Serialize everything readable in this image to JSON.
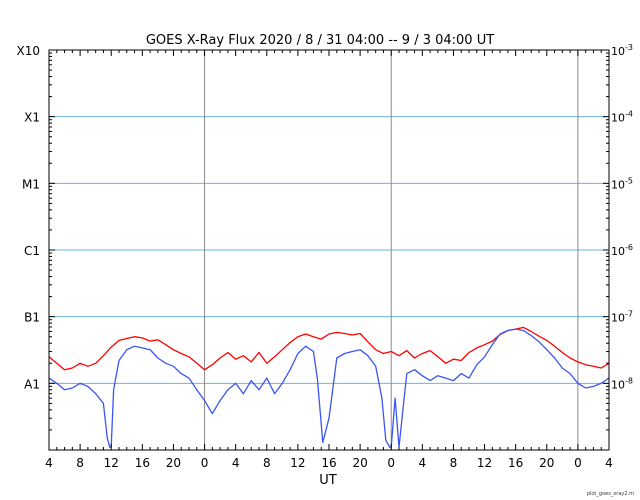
{
  "chart_data": {
    "type": "line",
    "title": "GOES X-Ray Flux   2020 /  8 / 31   04:00 --  9 /  3   04:00   UT",
    "xlabel": "UT",
    "x_unit": "hours from 2020-08-31 00:00 UT",
    "xlim": [
      4,
      76
    ],
    "x_ticks": [
      4,
      8,
      12,
      16,
      20,
      24,
      28,
      32,
      36,
      40,
      44,
      48,
      52,
      56,
      60,
      64,
      68,
      72,
      76
    ],
    "x_tick_labels": [
      "4",
      "8",
      "12",
      "16",
      "20",
      "0",
      "4",
      "8",
      "12",
      "16",
      "20",
      "0",
      "4",
      "8",
      "12",
      "16",
      "20",
      "0",
      "4"
    ],
    "day_boundaries": [
      24,
      48,
      72
    ],
    "y_scale": "log",
    "ylim": [
      1e-09,
      0.001
    ],
    "left_axis_labels": [
      {
        "value": 1e-08,
        "label": "A1"
      },
      {
        "value": 1e-07,
        "label": "B1"
      },
      {
        "value": 1e-06,
        "label": "C1"
      },
      {
        "value": 1e-05,
        "label": "M1"
      },
      {
        "value": 0.0001,
        "label": "X1"
      },
      {
        "value": 0.001,
        "label": "X10"
      }
    ],
    "right_axis_labels": [
      {
        "value": 0.001,
        "base": "10",
        "exp": "-3"
      },
      {
        "value": 0.0001,
        "base": "10",
        "exp": "-4"
      },
      {
        "value": 1e-05,
        "base": "10",
        "exp": "-5"
      },
      {
        "value": 1e-06,
        "base": "10",
        "exp": "-6"
      },
      {
        "value": 1e-07,
        "base": "10",
        "exp": "-7"
      },
      {
        "value": 1e-08,
        "base": "10",
        "exp": "-8"
      }
    ],
    "grid_lines": [
      1e-08,
      1e-07,
      1e-06,
      1e-05,
      0.0001
    ],
    "grid": true,
    "series": [
      {
        "color": "#ff0000",
        "x": [
          4,
          5,
          6,
          7,
          8,
          9,
          10,
          11,
          12,
          13,
          14,
          15,
          16,
          17,
          18,
          19,
          20,
          21,
          22,
          23,
          24,
          25,
          26,
          27,
          28,
          29,
          30,
          31,
          32,
          33,
          34,
          35,
          36,
          37,
          38,
          39,
          40,
          41,
          42,
          43,
          44,
          45,
          46,
          47,
          48,
          49,
          50,
          51,
          52,
          53,
          54,
          55,
          56,
          57,
          58,
          59,
          60,
          61,
          62,
          63,
          64,
          65,
          66,
          67,
          68,
          69,
          70,
          71,
          72,
          73,
          74,
          75,
          76
        ],
        "y": [
          2.5e-08,
          2e-08,
          1.6e-08,
          1.7e-08,
          2e-08,
          1.8e-08,
          2e-08,
          2.6e-08,
          3.5e-08,
          4.4e-08,
          4.7e-08,
          5e-08,
          4.8e-08,
          4.3e-08,
          4.5e-08,
          3.8e-08,
          3.2e-08,
          2.8e-08,
          2.5e-08,
          2e-08,
          1.6e-08,
          1.9e-08,
          2.4e-08,
          2.9e-08,
          2.3e-08,
          2.6e-08,
          2.1e-08,
          2.9e-08,
          2e-08,
          2.5e-08,
          3.2e-08,
          4.1e-08,
          5e-08,
          5.5e-08,
          5e-08,
          4.6e-08,
          5.5e-08,
          5.8e-08,
          5.6e-08,
          5.3e-08,
          5.6e-08,
          4.2e-08,
          3.2e-08,
          2.8e-08,
          3e-08,
          2.6e-08,
          3.1e-08,
          2.4e-08,
          2.8e-08,
          3.1e-08,
          2.5e-08,
          2e-08,
          2.3e-08,
          2.2e-08,
          2.9e-08,
          3.4e-08,
          3.8e-08,
          4.3e-08,
          5.4e-08,
          6.2e-08,
          6.5e-08,
          6.9e-08,
          6e-08,
          5.1e-08,
          4.4e-08,
          3.6e-08,
          2.9e-08,
          2.4e-08,
          2.1e-08,
          1.9e-08,
          1.8e-08,
          1.7e-08,
          2e-08
        ]
      },
      {
        "color": "#3a55f4",
        "x": [
          4,
          5,
          6,
          7,
          8,
          9,
          10,
          11,
          11.5,
          11.8,
          12,
          12.3,
          13,
          14,
          15,
          16,
          17,
          18,
          19,
          20,
          21,
          22,
          23,
          24,
          25,
          26,
          27,
          28,
          29,
          30,
          31,
          32,
          33,
          34,
          35,
          36,
          37,
          38,
          38.5,
          39.2,
          40,
          41,
          42,
          43,
          44,
          45,
          46,
          46.8,
          47.3,
          47.8,
          48,
          48.5,
          49,
          49.5,
          50,
          51,
          52,
          53,
          54,
          55,
          56,
          57,
          58,
          59,
          60,
          61,
          62,
          63,
          64,
          65,
          66,
          67,
          68,
          69,
          70,
          71,
          72,
          73,
          74,
          75,
          76
        ],
        "y": [
          1.2e-08,
          1e-08,
          8e-09,
          8.5e-09,
          1e-08,
          9e-09,
          7e-09,
          5e-09,
          1.5e-09,
          1.1e-09,
          1.1e-09,
          8e-09,
          2.2e-08,
          3.2e-08,
          3.6e-08,
          3.4e-08,
          3.2e-08,
          2.4e-08,
          2e-08,
          1.8e-08,
          1.4e-08,
          1.2e-08,
          8e-09,
          5.5e-09,
          3.5e-09,
          5.5e-09,
          8e-09,
          1e-08,
          7e-09,
          1.1e-08,
          8e-09,
          1.2e-08,
          7e-09,
          1e-08,
          1.6e-08,
          2.8e-08,
          3.6e-08,
          3e-08,
          1.2e-08,
          1.3e-09,
          3e-09,
          2.4e-08,
          2.8e-08,
          3e-08,
          3.2e-08,
          2.6e-08,
          1.8e-08,
          6e-09,
          1.4e-09,
          1.1e-09,
          1.1e-09,
          6e-09,
          1.1e-09,
          4e-09,
          1.4e-08,
          1.6e-08,
          1.3e-08,
          1.1e-08,
          1.3e-08,
          1.2e-08,
          1.1e-08,
          1.4e-08,
          1.2e-08,
          1.9e-08,
          2.5e-08,
          3.8e-08,
          5.5e-08,
          6.2e-08,
          6.5e-08,
          6.2e-08,
          5.2e-08,
          4.2e-08,
          3.2e-08,
          2.4e-08,
          1.7e-08,
          1.4e-08,
          1e-08,
          8.5e-09,
          9e-09,
          1e-08,
          1.2e-08
        ]
      }
    ]
  },
  "footer": {
    "credit": "plot_goes_xray2.m"
  }
}
